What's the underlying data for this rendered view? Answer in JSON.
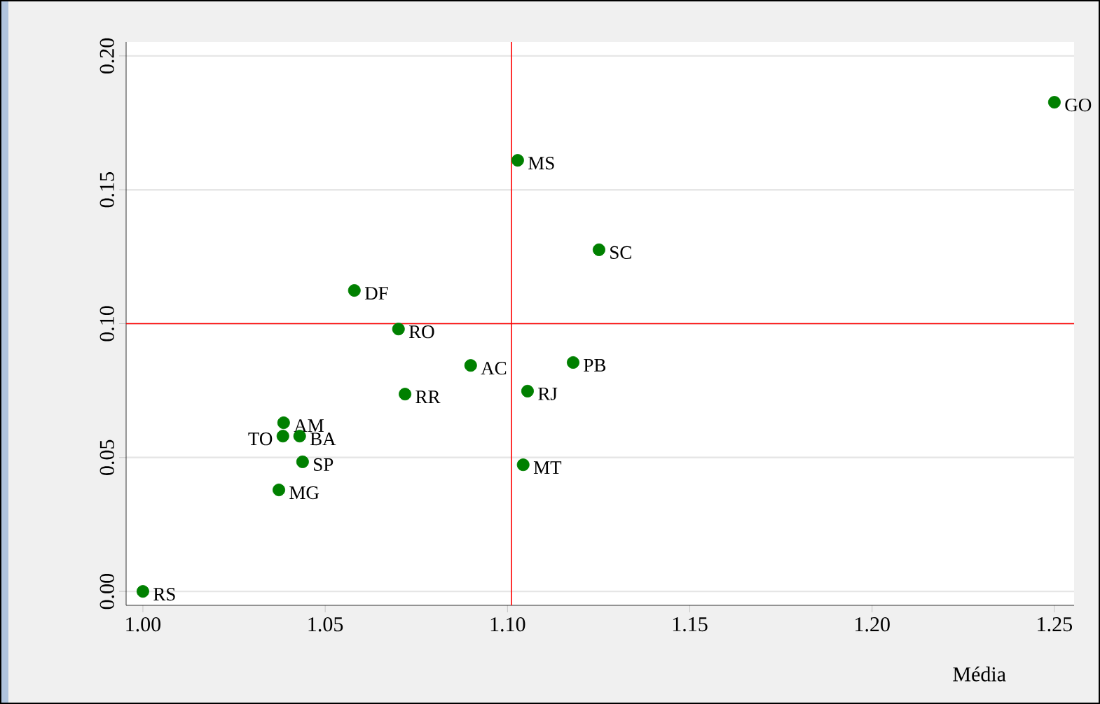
{
  "chart_data": {
    "type": "scatter",
    "xlabel": "Média",
    "x": [
      1.25,
      1.1028,
      1.1251,
      1.058,
      1.0701,
      1.0899,
      1.118,
      1.0719,
      1.1055,
      1.0386,
      1.0384,
      1.043,
      1.0438,
      1.1043,
      1.0373,
      1.0
    ],
    "series": [
      {
        "color": "#008000",
        "values": [
          0.1827,
          0.161,
          0.1276,
          0.1124,
          0.098,
          0.0844,
          0.0855,
          0.0737,
          0.0748,
          0.063,
          0.058,
          0.058,
          0.0484,
          0.0473,
          0.0379,
          0.0
        ]
      }
    ],
    "annotations": [
      {
        "text": "GO",
        "x": 1.25,
        "y": 0.1827
      },
      {
        "text": "MS",
        "x": 1.1028,
        "y": 0.161
      },
      {
        "text": "SC",
        "x": 1.1251,
        "y": 0.1276
      },
      {
        "text": "DF",
        "x": 1.058,
        "y": 0.1124
      },
      {
        "text": "RO",
        "x": 1.0701,
        "y": 0.098
      },
      {
        "text": "AC",
        "x": 1.0899,
        "y": 0.0844
      },
      {
        "text": "PB",
        "x": 1.118,
        "y": 0.0855
      },
      {
        "text": "RR",
        "x": 1.0719,
        "y": 0.0737
      },
      {
        "text": "RJ",
        "x": 1.1055,
        "y": 0.0748
      },
      {
        "text": "AM",
        "x": 1.0386,
        "y": 0.063
      },
      {
        "text": "TO",
        "x": 1.0384,
        "y": 0.058
      },
      {
        "text": "BA",
        "x": 1.043,
        "y": 0.058
      },
      {
        "text": "SP",
        "x": 1.0438,
        "y": 0.0484
      },
      {
        "text": "MT",
        "x": 1.1043,
        "y": 0.0473
      },
      {
        "text": "MG",
        "x": 1.0373,
        "y": 0.0379
      },
      {
        "text": "RS",
        "x": 1.0,
        "y": 0.0
      }
    ],
    "xlim": [
      0.9954,
      1.2554
    ],
    "ylim": [
      -0.0052,
      0.2052
    ],
    "xticks": [
      {
        "value": 1.0,
        "label": "1.00"
      },
      {
        "value": 1.05,
        "label": "1.05"
      },
      {
        "value": 1.1,
        "label": "1.10"
      },
      {
        "value": 1.15,
        "label": "1.15"
      },
      {
        "value": 1.2,
        "label": "1.20"
      },
      {
        "value": 1.25,
        "label": "1.25"
      }
    ],
    "yticks": [
      {
        "value": 0.0,
        "label": "0.00"
      },
      {
        "value": 0.05,
        "label": "0.05"
      },
      {
        "value": 0.1,
        "label": "0.10"
      },
      {
        "value": 0.15,
        "label": "0.15"
      },
      {
        "value": 0.2,
        "label": "0.20"
      }
    ],
    "ref_lines": [
      {
        "axis": "x",
        "value": 1.1011,
        "color": "#ff0000"
      },
      {
        "axis": "y",
        "value": 0.1,
        "color": "#ff0000"
      }
    ],
    "grid": "y",
    "marker": "circle"
  }
}
